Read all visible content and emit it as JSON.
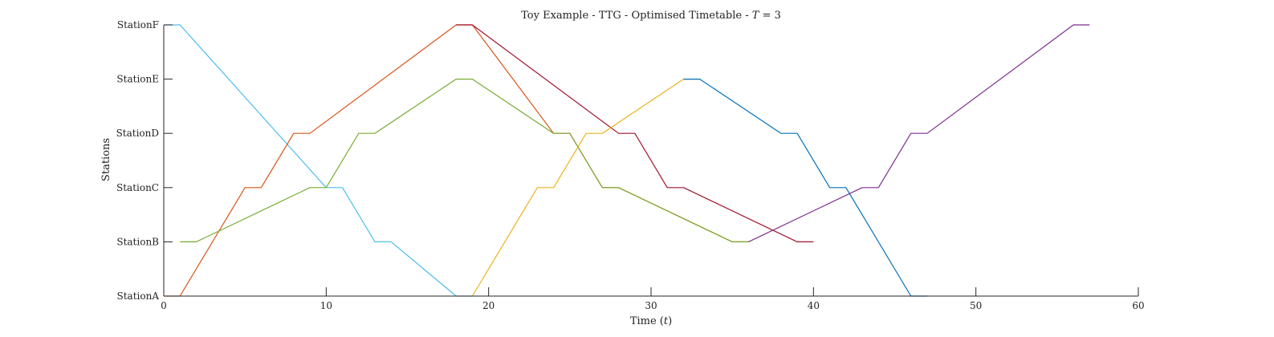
{
  "chart_data": {
    "type": "line",
    "title": "Toy Example - TTG - Optimised Timetable - T = 3",
    "title_parts": {
      "prefix": "Toy Example - TTG - Optimised Timetable - ",
      "variable": "T",
      "suffix": " = 3"
    },
    "xlabel": "Time (t)",
    "xlabel_parts": {
      "prefix": "Time (",
      "variable": "t",
      "suffix": ")"
    },
    "ylabel": "Stations",
    "xlim": [
      0,
      60
    ],
    "ylim": [
      0,
      5
    ],
    "xticks": [
      0,
      10,
      20,
      30,
      40,
      50,
      60
    ],
    "yticks": [
      "StationA",
      "StationB",
      "StationC",
      "StationD",
      "StationE",
      "StationF"
    ],
    "grid": false,
    "legend": "none",
    "series": [
      {
        "color": "#4DBEEE",
        "x": [
          0,
          1,
          10,
          11,
          13,
          14,
          18,
          19
        ],
        "y": [
          5,
          5,
          2,
          2,
          1,
          1,
          0,
          0
        ]
      },
      {
        "color": "#D95319",
        "x": [
          0,
          1,
          5,
          6,
          8,
          9,
          18,
          19,
          24,
          25,
          27,
          28,
          35,
          36
        ],
        "y": [
          0,
          0,
          2,
          2,
          3,
          3,
          5,
          5,
          3,
          3,
          2,
          2,
          1,
          1
        ]
      },
      {
        "color": "#77AC30",
        "x": [
          1,
          2,
          9,
          10,
          12,
          13,
          18,
          19,
          24,
          25,
          27,
          28,
          35,
          36
        ],
        "y": [
          1,
          1,
          2,
          2,
          3,
          3,
          4,
          4,
          3,
          3,
          2,
          2,
          1,
          1
        ]
      },
      {
        "color": "#A2142F",
        "x": [
          18,
          19,
          28,
          29,
          31,
          32,
          39,
          40
        ],
        "y": [
          5,
          5,
          3,
          3,
          2,
          2,
          1,
          1
        ]
      },
      {
        "color": "#EDB120",
        "x": [
          19,
          23,
          24,
          26,
          27,
          32,
          33
        ],
        "y": [
          0,
          2,
          2,
          3,
          3,
          4,
          4
        ]
      },
      {
        "color": "#0072BD",
        "x": [
          32,
          33,
          38,
          39,
          41,
          42,
          46,
          47
        ],
        "y": [
          4,
          4,
          3,
          3,
          2,
          2,
          0,
          0
        ]
      },
      {
        "color": "#7E2F8E",
        "x": [
          36,
          43,
          44,
          46,
          47,
          56,
          57
        ],
        "y": [
          1,
          2,
          2,
          3,
          3,
          5,
          5
        ]
      }
    ]
  }
}
